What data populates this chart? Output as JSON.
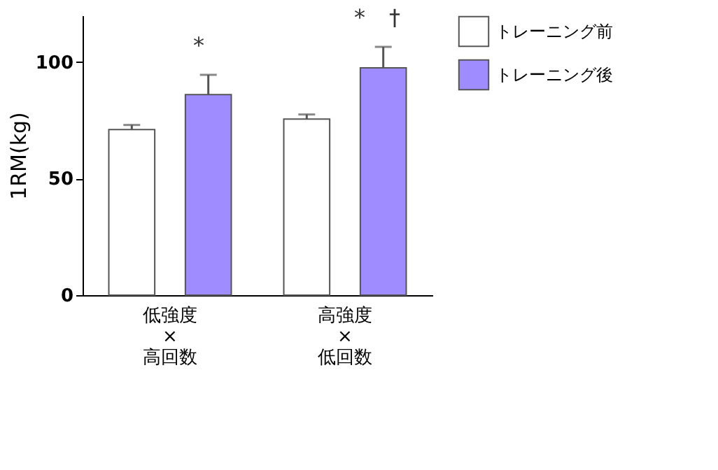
{
  "chart_data": {
    "type": "bar",
    "ylabel": "1RM(kg)",
    "categories": [
      "低強度\n×\n高回数",
      "高強度\n×\n低回数"
    ],
    "series": [
      {
        "name": "トレーニング前",
        "color": "#ffffff",
        "values": [
          71,
          75.5
        ],
        "errors": [
          [
            71,
            73
          ],
          [
            75.5,
            77.5
          ]
        ]
      },
      {
        "name": "トレーニング後",
        "color": "#9f8cff",
        "values": [
          86,
          97.5
        ],
        "errors": [
          [
            86,
            94.5
          ],
          [
            97.5,
            106.5
          ]
        ]
      }
    ],
    "ylim": [
      0,
      120
    ],
    "yticks": [
      0,
      50,
      100
    ],
    "grid": false,
    "legend": "top right",
    "annotations": [
      "*",
      "*",
      "†"
    ]
  }
}
